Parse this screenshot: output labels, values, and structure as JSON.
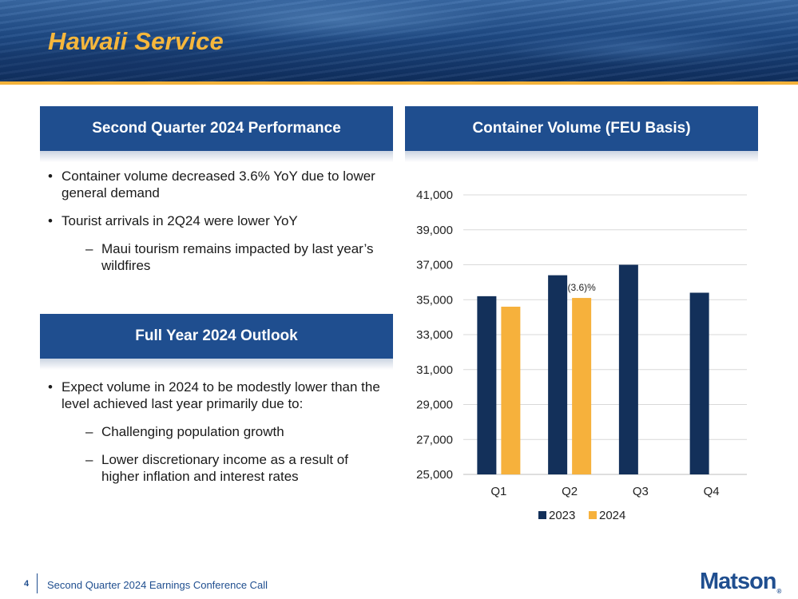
{
  "slide": {
    "title": "Hawaii Service",
    "page_number": "4",
    "footer": "Second Quarter 2024 Earnings Conference Call",
    "logo": "Matson",
    "logo_mark": "®"
  },
  "colors": {
    "brand_blue": "#1f4e8f",
    "accent_gold": "#f3b23a",
    "series_2023": "#13305a",
    "series_2024": "#f6b13c"
  },
  "left_panel": {
    "performance_header": "Second Quarter 2024 Performance",
    "performance_bullets": [
      "Container volume decreased 3.6% YoY due to lower general demand",
      "Tourist arrivals in 2Q24 were lower YoY"
    ],
    "performance_sub": "Maui tourism remains impacted by last year’s wildfires",
    "outlook_header": "Full Year 2024 Outlook",
    "outlook_bullet": "Expect volume in 2024 to be modestly lower than the level achieved last year primarily due to:",
    "outlook_subs": [
      "Challenging population growth",
      "Lower discretionary income as a result of higher inflation and interest rates"
    ]
  },
  "chart_panel": {
    "header": "Container Volume (FEU Basis)"
  },
  "chart_data": {
    "type": "bar",
    "title": "Container Volume (FEU Basis)",
    "categories": [
      "Q1",
      "Q2",
      "Q3",
      "Q4"
    ],
    "series": [
      {
        "name": "2023",
        "values": [
          35200,
          36400,
          37000,
          35400
        ]
      },
      {
        "name": "2024",
        "values": [
          34600,
          35100,
          null,
          null
        ]
      }
    ],
    "ylim": [
      25000,
      41000
    ],
    "yticks": [
      25000,
      27000,
      29000,
      31000,
      33000,
      35000,
      37000,
      39000,
      41000
    ],
    "grid": true,
    "legend": "bottom",
    "annotations": [
      {
        "category": "Q2",
        "series": "2024",
        "text": "(3.6)%"
      }
    ]
  }
}
